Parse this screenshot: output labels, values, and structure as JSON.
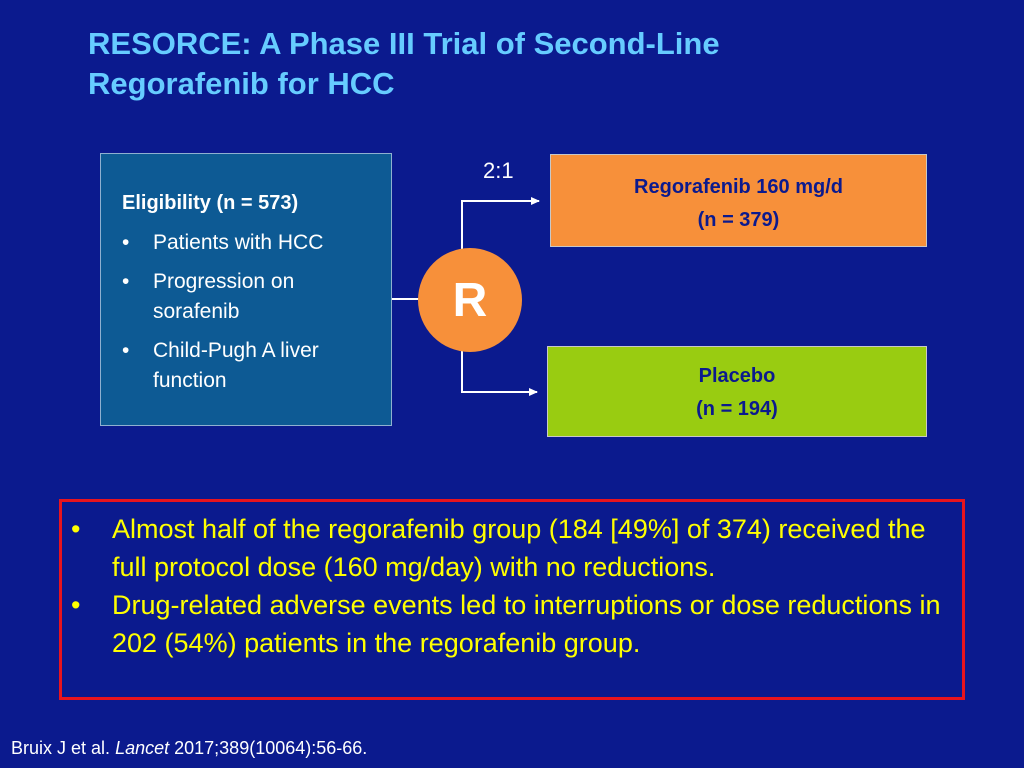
{
  "title": {
    "line1": "RESORCE: A Phase III Trial of Second-Line",
    "line2": "Regorafenib for HCC"
  },
  "eligibility": {
    "heading": "Eligibility (n = 573)",
    "bullet": "•",
    "items": [
      "Patients with HCC",
      "Progression on sorafenib",
      "Child-Pugh A liver function"
    ]
  },
  "randomization": {
    "ratio": "2:1",
    "label": "R"
  },
  "arms": {
    "regorafenib": {
      "name": "Regorafenib 160 mg/d",
      "n": "(n = 379)"
    },
    "placebo": {
      "name": "Placebo",
      "n": "(n = 194)"
    }
  },
  "callout": {
    "bullet": "•",
    "items": [
      "Almost half of the regorafenib group (184 [49%] of 374) received the full protocol dose (160 mg/day) with no reductions.",
      "Drug-related adverse events led to interruptions or dose reductions in 202 (54%) patients in the regorafenib group."
    ]
  },
  "citation": {
    "authors": "Bruix J et al.",
    "journal": "Lancet",
    "reference": "2017;389(10064):56-66."
  },
  "colors": {
    "background": "#0b1a8e",
    "title": "#66ccff",
    "regorafenib_arm": "#f7903a",
    "placebo_arm": "#99cc11",
    "callout_border": "#e8141e",
    "callout_text": "#ffff00"
  }
}
